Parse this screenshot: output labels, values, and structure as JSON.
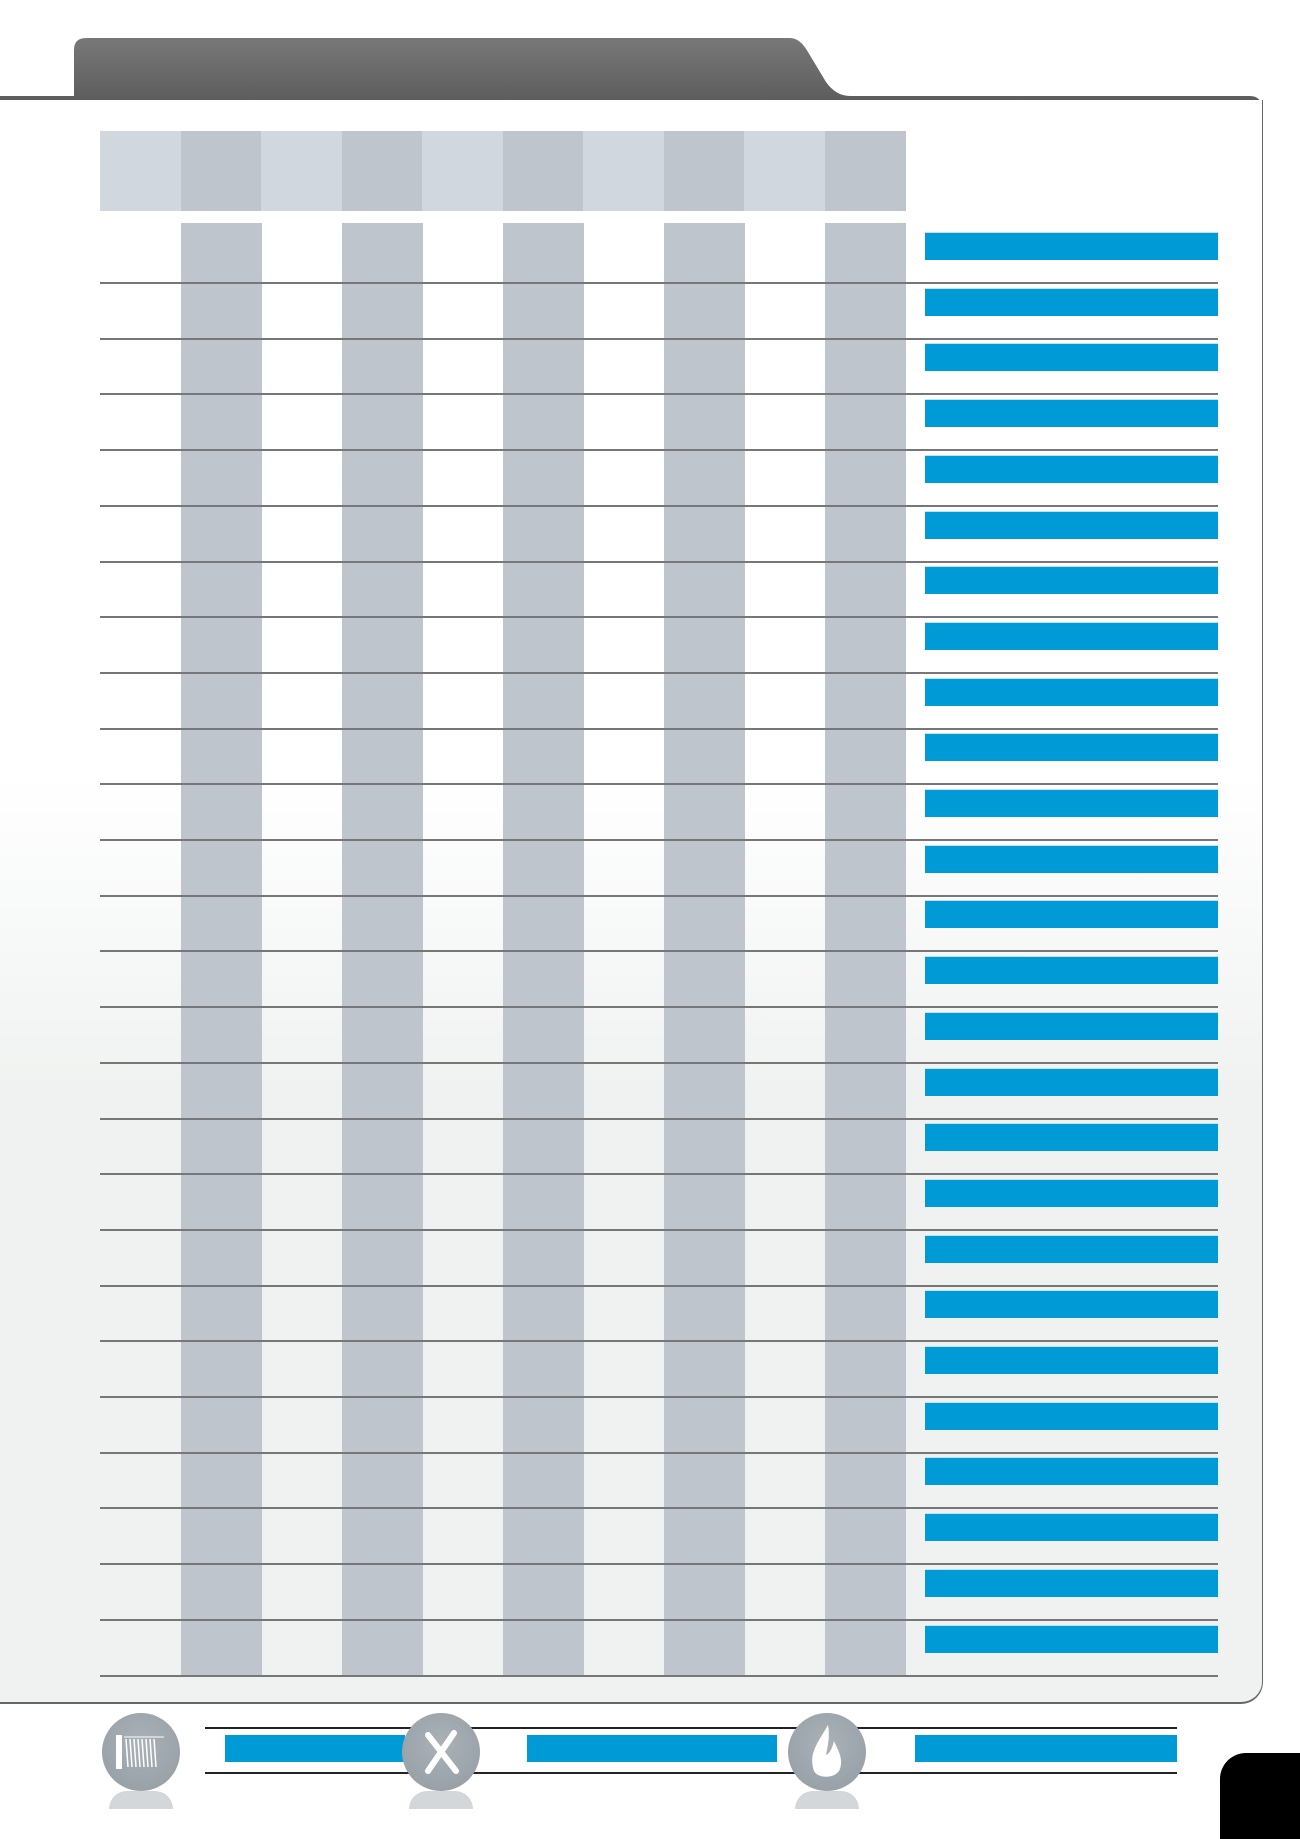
{
  "colors": {
    "header": "#5d5d5d",
    "accent": "#009ad6",
    "column_dark": "#bec5cc",
    "column_light": "#d0d7de",
    "page_tab": "#000000"
  },
  "table": {
    "column_count": 10,
    "row_count": 26
  },
  "footer": {
    "icons": [
      "coil-spring-icon",
      "tools-icon",
      "flame-icon"
    ]
  }
}
